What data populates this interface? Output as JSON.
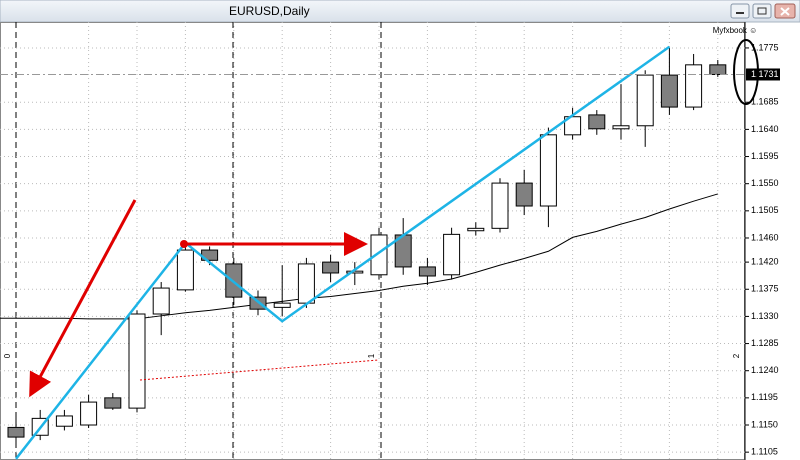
{
  "chart_data": {
    "type": "candlestick",
    "title": "EURUSD,Daily",
    "watermark": "Myfxbook ☺",
    "open": [
      1.1146,
      1.1133,
      1.1148,
      1.115,
      1.1195,
      1.1178,
      1.1334,
      1.1374,
      1.144,
      1.1417,
      1.1362,
      1.1345,
      1.1352,
      1.142,
      1.1402,
      1.1399,
      1.1465,
      1.1412,
      1.1399,
      1.1472,
      1.1476,
      1.1551,
      1.1513,
      1.1631,
      1.1664,
      1.1641,
      1.1646,
      1.173,
      1.1677,
      1.1747
    ],
    "high": [
      1.1166,
      1.1175,
      1.1175,
      1.12,
      1.1203,
      1.134,
      1.1387,
      1.1452,
      1.1446,
      1.1427,
      1.1373,
      1.1415,
      1.1427,
      1.1432,
      1.142,
      1.1477,
      1.1493,
      1.1427,
      1.1477,
      1.1486,
      1.1559,
      1.1573,
      1.1643,
      1.1676,
      1.1672,
      1.1715,
      1.1738,
      1.1775,
      1.1765,
      1.1755
    ],
    "low": [
      1.1117,
      1.1125,
      1.1141,
      1.1145,
      1.1175,
      1.1171,
      1.1299,
      1.1371,
      1.1415,
      1.1349,
      1.1332,
      1.133,
      1.1344,
      1.1387,
      1.1382,
      1.1391,
      1.1399,
      1.1382,
      1.1391,
      1.1464,
      1.1469,
      1.1498,
      1.1478,
      1.1623,
      1.1631,
      1.1623,
      1.1611,
      1.1664,
      1.1672,
      1.1727
    ],
    "close": [
      1.113,
      1.1161,
      1.1165,
      1.1188,
      1.1178,
      1.1334,
      1.1377,
      1.144,
      1.1423,
      1.1362,
      1.1342,
      1.1352,
      1.1417,
      1.1402,
      1.1405,
      1.1465,
      1.1412,
      1.1397,
      1.1466,
      1.1476,
      1.1551,
      1.1513,
      1.1631,
      1.1661,
      1.1641,
      1.1646,
      1.173,
      1.1677,
      1.1747,
      1.1731
    ],
    "up_color": "#ffffff",
    "down_color": "#808080",
    "moving_average": {
      "color": "#000000",
      "values": [
        1.1327,
        1.1327,
        1.1327,
        1.1326,
        1.1326,
        1.1326,
        1.1331,
        1.1336,
        1.134,
        1.1345,
        1.135,
        1.1355,
        1.136,
        1.1363,
        1.1368,
        1.1373,
        1.138,
        1.1385,
        1.1392,
        1.1403,
        1.1415,
        1.1426,
        1.1438,
        1.1461,
        1.1471,
        1.1483,
        1.1494,
        1.1508,
        1.1521,
        1.1533
      ]
    },
    "zigzag": {
      "color": "#1eb4e6",
      "x": [
        0,
        7,
        11,
        27
      ],
      "values": [
        1.1094,
        1.1452,
        1.1322,
        1.1777
      ]
    },
    "current_price": 1.1731,
    "period_labels": [
      "0",
      "1",
      "2"
    ],
    "ylim": [
      1.1092,
      1.1818
    ],
    "yticks": [
      {
        "value": 1.1775,
        "label": "1.1775"
      },
      {
        "value": 1.1685,
        "label": "1.1685"
      },
      {
        "value": 1.164,
        "label": "1.1640"
      },
      {
        "value": 1.1595,
        "label": "1.1595"
      },
      {
        "value": 1.155,
        "label": "1.1550"
      },
      {
        "value": 1.1505,
        "label": "1.1505"
      },
      {
        "value": 1.146,
        "label": "1.1460"
      },
      {
        "value": 1.142,
        "label": "1.1420"
      },
      {
        "value": 1.1375,
        "label": "1.1375"
      },
      {
        "value": 1.133,
        "label": "1.1330"
      },
      {
        "value": 1.1285,
        "label": "1.1285"
      },
      {
        "value": 1.124,
        "label": "1.1240"
      },
      {
        "value": 1.1195,
        "label": "1.1195"
      },
      {
        "value": 1.115,
        "label": "1.1150"
      },
      {
        "value": 1.1105,
        "label": "1.1105"
      }
    ],
    "grid": true
  }
}
